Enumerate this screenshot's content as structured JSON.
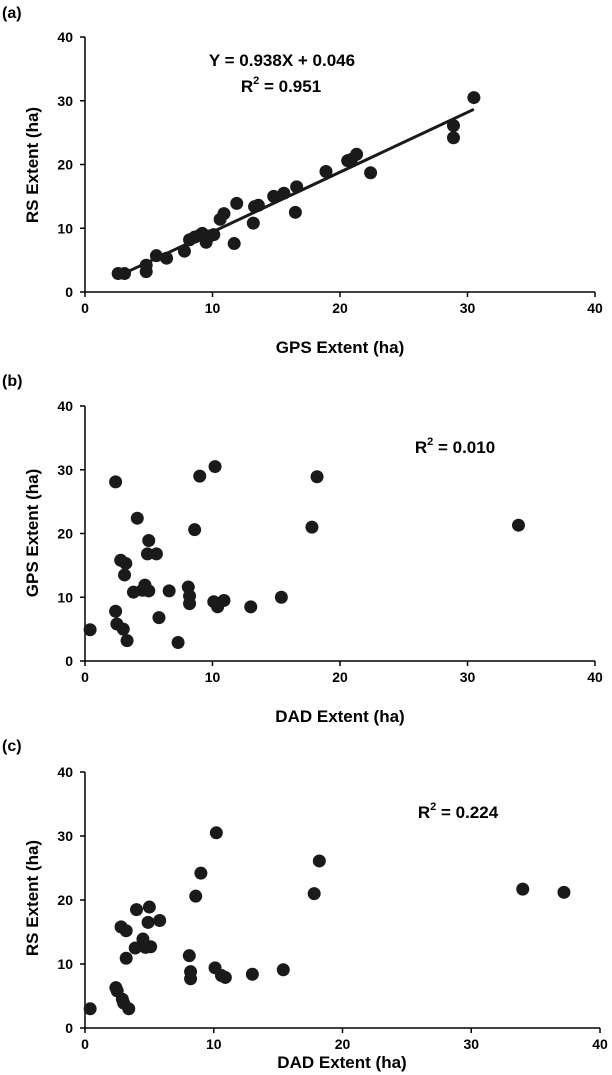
{
  "chart_data": [
    {
      "type": "scatter",
      "panel_label": "(a)",
      "xlabel": "GPS Extent (ha)",
      "ylabel": "RS Extent (ha)",
      "xlim": [
        0,
        40
      ],
      "ylim": [
        0,
        40
      ],
      "xticks": [
        "0",
        "10",
        "20",
        "30",
        "40"
      ],
      "yticks": [
        "0",
        "10",
        "20",
        "30",
        "40"
      ],
      "annotation_lines": [
        "Y = 0.938X + 0.046",
        "R2 = 0.951"
      ],
      "equation": "Y = 0.938X + 0.046",
      "r2_text": "R",
      "r2_sup": "2",
      "r2_value": " = 0.951",
      "fit": {
        "slope": 0.938,
        "intercept": 0.046,
        "x_range": [
          3,
          30.5
        ]
      },
      "x": [
        2.6,
        3.1,
        4.8,
        4.8,
        5.6,
        6.4,
        7.8,
        8.2,
        8.6,
        9.0,
        9.2,
        9.5,
        9.8,
        10.1,
        10.6,
        10.9,
        11.7,
        11.9,
        13.2,
        13.3,
        13.6,
        14.8,
        15.6,
        16.5,
        16.6,
        18.9,
        20.6,
        20.9,
        21.3,
        22.4,
        28.9,
        28.9,
        30.5
      ],
      "y": [
        2.9,
        2.9,
        3.2,
        4.2,
        5.7,
        5.3,
        6.4,
        8.2,
        8.6,
        8.9,
        9.2,
        7.8,
        8.8,
        9.0,
        11.4,
        12.3,
        7.6,
        13.9,
        10.8,
        13.4,
        13.6,
        15.0,
        15.5,
        12.5,
        16.5,
        18.9,
        20.6,
        20.8,
        21.6,
        18.7,
        24.2,
        26.1,
        30.5
      ]
    },
    {
      "type": "scatter",
      "panel_label": "(b)",
      "xlabel": "DAD Extent (ha)",
      "ylabel": "GPS Extent (ha)",
      "xlim": [
        0,
        40
      ],
      "ylim": [
        0,
        40
      ],
      "xticks": [
        "0",
        "10",
        "20",
        "30",
        "40"
      ],
      "yticks": [
        "0",
        "10",
        "20",
        "30",
        "40"
      ],
      "r2_text": "R",
      "r2_sup": "2",
      "r2_value": " = 0.010",
      "x": [
        0.4,
        2.4,
        2.4,
        2.5,
        2.8,
        3.0,
        3.1,
        3.2,
        3.3,
        3.8,
        4.1,
        4.5,
        4.7,
        4.9,
        5.0,
        5.0,
        5.6,
        5.8,
        6.6,
        7.3,
        8.1,
        8.2,
        8.2,
        8.6,
        9.0,
        10.1,
        10.2,
        10.4,
        10.9,
        13.0,
        15.4,
        17.8,
        18.2,
        34.0
      ],
      "y": [
        4.9,
        28.1,
        7.8,
        5.8,
        15.8,
        5.0,
        13.5,
        15.3,
        3.2,
        10.8,
        22.4,
        11.1,
        11.9,
        16.8,
        18.9,
        11.0,
        16.8,
        6.8,
        11.0,
        2.9,
        11.6,
        9.0,
        10.2,
        20.6,
        29.0,
        9.3,
        30.5,
        8.5,
        9.5,
        8.5,
        10.0,
        21.0,
        28.9,
        21.3
      ]
    },
    {
      "type": "scatter",
      "panel_label": "(c)",
      "xlabel": "DAD Extent (ha)",
      "ylabel": "RS Extent (ha)",
      "xlim": [
        0,
        40
      ],
      "ylim": [
        0,
        40
      ],
      "xticks": [
        "0",
        "10",
        "20",
        "30",
        "40"
      ],
      "yticks": [
        "0",
        "10",
        "20",
        "30",
        "40"
      ],
      "r2_text": "R",
      "r2_sup": "2",
      "r2_value": " = 0.224",
      "x": [
        0.4,
        2.4,
        2.5,
        2.8,
        2.9,
        3.0,
        3.2,
        3.2,
        3.4,
        3.9,
        4.0,
        4.5,
        4.7,
        4.9,
        5.0,
        5.1,
        5.8,
        8.1,
        8.2,
        8.2,
        8.6,
        9.0,
        10.1,
        10.2,
        10.6,
        10.9,
        13.0,
        15.4,
        17.8,
        18.2,
        34.0,
        37.2
      ],
      "y": [
        3.0,
        6.3,
        5.8,
        15.8,
        4.5,
        3.9,
        10.9,
        15.2,
        3.0,
        12.5,
        18.5,
        13.9,
        12.6,
        16.5,
        18.9,
        12.7,
        16.8,
        11.3,
        8.8,
        7.7,
        20.6,
        24.2,
        9.4,
        30.5,
        8.2,
        7.9,
        8.4,
        9.1,
        21.0,
        26.1,
        21.7,
        21.2
      ]
    }
  ]
}
